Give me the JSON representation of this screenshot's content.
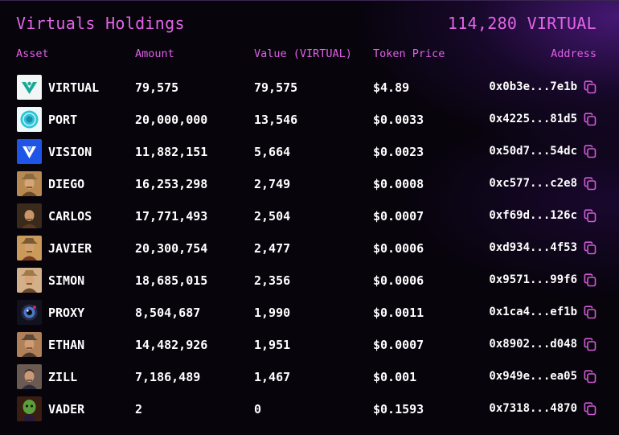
{
  "header": {
    "title": "Virtuals Holdings",
    "total": "114,280 VIRTUAL"
  },
  "columns": {
    "asset": "Asset",
    "amount": "Amount",
    "value": "Value (VIRTUAL)",
    "price": "Token Price",
    "address": "Address"
  },
  "rows": [
    {
      "name": "VIRTUAL",
      "amount": "79,575",
      "value": "79,575",
      "price": "$4.89",
      "address": "0x0b3e...7e1b",
      "avatar": "virtual-logo"
    },
    {
      "name": "PORT",
      "amount": "20,000,000",
      "value": "13,546",
      "price": "$0.0033",
      "address": "0x4225...81d5",
      "avatar": "port-logo"
    },
    {
      "name": "VISION",
      "amount": "11,882,151",
      "value": "5,664",
      "price": "$0.0023",
      "address": "0x50d7...54dc",
      "avatar": "vision-logo"
    },
    {
      "name": "DIEGO",
      "amount": "16,253,298",
      "value": "2,749",
      "price": "$0.0008",
      "address": "0xc577...c2e8",
      "avatar": "diego-portrait"
    },
    {
      "name": "CARLOS",
      "amount": "17,771,493",
      "value": "2,504",
      "price": "$0.0007",
      "address": "0xf69d...126c",
      "avatar": "carlos-portrait"
    },
    {
      "name": "JAVIER",
      "amount": "20,300,754",
      "value": "2,477",
      "price": "$0.0006",
      "address": "0xd934...4f53",
      "avatar": "javier-portrait"
    },
    {
      "name": "SIMON",
      "amount": "18,685,015",
      "value": "2,356",
      "price": "$0.0006",
      "address": "0x9571...99f6",
      "avatar": "simon-portrait"
    },
    {
      "name": "PROXY",
      "amount": "8,504,687",
      "value": "1,990",
      "price": "$0.0011",
      "address": "0x1ca4...ef1b",
      "avatar": "proxy-eye"
    },
    {
      "name": "ETHAN",
      "amount": "14,482,926",
      "value": "1,951",
      "price": "$0.0007",
      "address": "0x8902...d048",
      "avatar": "ethan-portrait"
    },
    {
      "name": "ZILL",
      "amount": "7,186,489",
      "value": "1,467",
      "price": "$0.001",
      "address": "0x949e...ea05",
      "avatar": "zill-portrait"
    },
    {
      "name": "VADER",
      "amount": "2",
      "value": "0",
      "price": "$0.1593",
      "address": "0x7318...4870",
      "avatar": "vader-portrait"
    }
  ],
  "colors": {
    "accent": "#e364e6",
    "background": "#07040c",
    "text": "#ffffff"
  }
}
